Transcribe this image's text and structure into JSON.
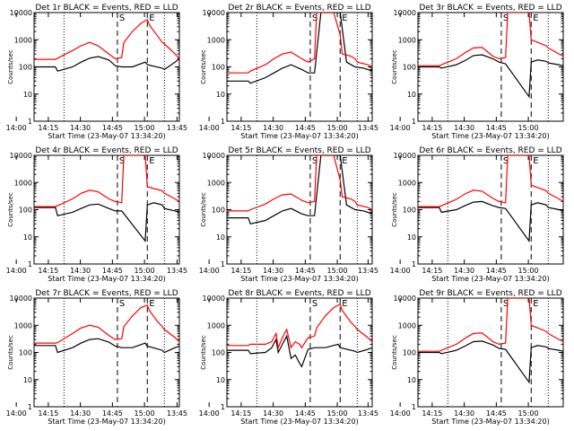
{
  "chart_data": [
    {
      "type": "line",
      "title": "Det 1r BLACK = Events, RED = LLD",
      "ylabel": "Counts/sec",
      "xlabel": "Start Time (23-May-07 13:34:20)",
      "ylim_log": [
        1,
        10000
      ],
      "yticks": [
        "1",
        "10",
        "100",
        "1000",
        "10000"
      ],
      "xticks": [
        "13:45",
        "14:00",
        "14:15",
        "14:30",
        "14:45",
        "15:00"
      ],
      "xlim_min": [
        34,
        102
      ],
      "marker_labels": [
        "S",
        "E"
      ],
      "series": [
        {
          "name": "Events",
          "color": "#000000",
          "x": [
            34,
            44,
            45,
            52,
            56,
            60,
            64,
            69,
            72,
            75,
            80,
            86,
            87,
            94,
            95,
            100,
            102
          ],
          "y": [
            100,
            100,
            70,
            100,
            150,
            210,
            240,
            180,
            110,
            100,
            100,
            150,
            120,
            90,
            80,
            150,
            200
          ]
        },
        {
          "name": "LLD",
          "color": "#ff0000",
          "x": [
            34,
            44,
            45,
            52,
            56,
            60,
            64,
            69,
            72,
            75,
            76,
            80,
            84,
            87,
            88,
            92,
            94,
            95,
            100,
            102
          ],
          "y": [
            190,
            190,
            210,
            400,
            600,
            800,
            600,
            300,
            200,
            220,
            800,
            2000,
            4000,
            5500,
            3500,
            1300,
            800,
            700,
            300,
            200
          ]
        }
      ]
    },
    {
      "type": "line",
      "title": "Det 2r BLACK = Events, RED = LLD",
      "ylabel": "Counts/sec",
      "xlabel": "Start Time (23-May-07 13:34:20)",
      "ylim_log": [
        1,
        10000
      ],
      "yticks": [
        "1",
        "10",
        "100",
        "1000",
        "10000"
      ],
      "xticks": [
        "13:45",
        "14:00",
        "14:15",
        "14:30",
        "14:45",
        "15:00"
      ],
      "xlim_min": [
        34,
        102
      ],
      "marker_labels": [
        "S",
        "E"
      ],
      "series": [
        {
          "name": "Events",
          "color": "#000000",
          "x": [
            34,
            44,
            45,
            52,
            56,
            60,
            64,
            69,
            72,
            75,
            78,
            84,
            87,
            90,
            94,
            98,
            100,
            102
          ],
          "y": [
            30,
            30,
            25,
            40,
            60,
            90,
            120,
            80,
            60,
            60,
            10000,
            10000,
            10000,
            150,
            100,
            90,
            80,
            70
          ]
        },
        {
          "name": "LLD",
          "color": "#ff0000",
          "x": [
            34,
            44,
            45,
            52,
            56,
            60,
            64,
            69,
            72,
            75,
            76,
            80,
            84,
            87,
            88,
            92,
            94,
            95,
            100,
            102
          ],
          "y": [
            60,
            60,
            70,
            120,
            200,
            300,
            350,
            200,
            150,
            200,
            10000,
            10000,
            10000,
            1500,
            300,
            250,
            200,
            150,
            120,
            100
          ]
        }
      ]
    },
    {
      "type": "line",
      "title": "Det 3r BLACK = Events, RED = LLD",
      "ylabel": "Counts/sec",
      "xlabel": "Start Time (23-May-07 13:34:20)",
      "ylim_log": [
        1,
        10000
      ],
      "yticks": [
        "1",
        "10",
        "100",
        "1000",
        "10000"
      ],
      "xticks": [
        "13:45",
        "14:00",
        "14:15",
        "14:30",
        "14:45",
        "15:00"
      ],
      "xlim_min": [
        34,
        102
      ],
      "marker_labels": [
        "S",
        "E"
      ],
      "series": [
        {
          "name": "Events",
          "color": "#000000",
          "x": [
            34,
            44,
            45,
            52,
            56,
            60,
            64,
            69,
            72,
            75,
            86,
            87,
            90,
            94,
            95,
            100,
            102
          ],
          "y": [
            100,
            100,
            90,
            120,
            170,
            260,
            280,
            200,
            150,
            130,
            8,
            150,
            180,
            160,
            140,
            120,
            110
          ]
        },
        {
          "name": "LLD",
          "color": "#ff0000",
          "x": [
            34,
            44,
            45,
            52,
            56,
            60,
            64,
            69,
            72,
            75,
            76,
            84,
            86,
            87,
            90,
            94,
            95,
            100,
            102
          ],
          "y": [
            110,
            110,
            120,
            200,
            330,
            500,
            520,
            250,
            200,
            220,
            10000,
            10000,
            10000,
            1000,
            800,
            600,
            500,
            300,
            250
          ]
        }
      ]
    },
    {
      "type": "line",
      "title": "Det 4r BLACK = Events, RED = LLD",
      "ylabel": "Counts/sec",
      "xlabel": "Start Time (23-May-07 13:34:20)",
      "ylim_log": [
        1,
        10000
      ],
      "yticks": [
        "1",
        "10",
        "100",
        "1000",
        "10000"
      ],
      "xticks": [
        "13:45",
        "14:00",
        "14:15",
        "14:30",
        "14:45",
        "15:00"
      ],
      "xlim_min": [
        34,
        102
      ],
      "marker_labels": [
        "S",
        "E"
      ],
      "series": [
        {
          "name": "Events",
          "color": "#000000",
          "x": [
            34,
            44,
            45,
            52,
            56,
            60,
            64,
            69,
            72,
            75,
            86,
            87,
            90,
            94,
            95,
            100,
            102
          ],
          "y": [
            120,
            120,
            60,
            80,
            110,
            150,
            160,
            110,
            90,
            90,
            7,
            150,
            180,
            150,
            110,
            90,
            80
          ]
        },
        {
          "name": "LLD",
          "color": "#ff0000",
          "x": [
            34,
            44,
            45,
            52,
            56,
            60,
            64,
            69,
            72,
            75,
            76,
            84,
            86,
            87,
            90,
            94,
            95,
            100,
            102
          ],
          "y": [
            130,
            130,
            140,
            250,
            400,
            520,
            450,
            250,
            200,
            180,
            10000,
            10000,
            10000,
            700,
            600,
            500,
            400,
            250,
            200
          ]
        }
      ]
    },
    {
      "type": "line",
      "title": "Det 5r BLACK = Events, RED = LLD",
      "ylabel": "Counts/sec",
      "xlabel": "Start Time (23-May-07 13:34:20)",
      "ylim_log": [
        1,
        10000
      ],
      "yticks": [
        "1",
        "10",
        "100",
        "1000",
        "10000"
      ],
      "xticks": [
        "13:45",
        "14:00",
        "14:15",
        "14:30",
        "14:45",
        "15:00"
      ],
      "xlim_min": [
        34,
        102
      ],
      "marker_labels": [
        "S",
        "E"
      ],
      "series": [
        {
          "name": "Events",
          "color": "#000000",
          "x": [
            34,
            44,
            45,
            52,
            56,
            60,
            64,
            69,
            72,
            75,
            78,
            84,
            87,
            90,
            94,
            98,
            100,
            102
          ],
          "y": [
            50,
            50,
            30,
            40,
            60,
            90,
            110,
            70,
            60,
            60,
            10000,
            10000,
            10000,
            150,
            100,
            90,
            80,
            70
          ]
        },
        {
          "name": "LLD",
          "color": "#ff0000",
          "x": [
            34,
            44,
            45,
            52,
            56,
            60,
            64,
            69,
            72,
            75,
            76,
            80,
            84,
            87,
            88,
            92,
            94,
            95,
            100,
            102
          ],
          "y": [
            90,
            90,
            100,
            160,
            250,
            350,
            380,
            220,
            180,
            200,
            10000,
            10000,
            10000,
            1200,
            300,
            250,
            200,
            150,
            120,
            100
          ]
        }
      ]
    },
    {
      "type": "line",
      "title": "Det 6r BLACK = Events, RED = LLD",
      "ylabel": "Counts/sec",
      "xlabel": "Start Time (23-May-07 13:34:20)",
      "ylim_log": [
        1,
        10000
      ],
      "yticks": [
        "1",
        "10",
        "100",
        "1000",
        "10000"
      ],
      "xticks": [
        "13:45",
        "14:00",
        "14:15",
        "14:30",
        "14:45",
        "15:00"
      ],
      "xlim_min": [
        34,
        102
      ],
      "marker_labels": [
        "S",
        "E"
      ],
      "series": [
        {
          "name": "Events",
          "color": "#000000",
          "x": [
            34,
            44,
            45,
            52,
            56,
            60,
            64,
            69,
            72,
            75,
            86,
            87,
            90,
            94,
            95,
            100,
            102
          ],
          "y": [
            120,
            120,
            80,
            100,
            140,
            190,
            200,
            140,
            120,
            110,
            7,
            150,
            180,
            150,
            120,
            100,
            90
          ]
        },
        {
          "name": "LLD",
          "color": "#ff0000",
          "x": [
            34,
            44,
            45,
            52,
            56,
            60,
            64,
            69,
            72,
            75,
            76,
            84,
            86,
            87,
            90,
            94,
            95,
            100,
            102
          ],
          "y": [
            130,
            130,
            140,
            240,
            380,
            520,
            480,
            260,
            200,
            180,
            10000,
            10000,
            10000,
            800,
            650,
            500,
            400,
            250,
            200
          ]
        }
      ]
    },
    {
      "type": "line",
      "title": "Det 7r BLACK = Events, RED = LLD",
      "ylabel": "Counts/sec",
      "xlabel": "Start Time (23-May-07 13:34:20)",
      "ylim_log": [
        1,
        10000
      ],
      "yticks": [
        "1",
        "10",
        "100",
        "1000",
        "10000"
      ],
      "xticks": [
        "13:45",
        "14:00",
        "14:15",
        "14:30",
        "14:45",
        "15:00"
      ],
      "xlim_min": [
        34,
        102
      ],
      "marker_labels": [
        "S",
        "E"
      ],
      "series": [
        {
          "name": "Events",
          "color": "#000000",
          "x": [
            34,
            44,
            45,
            52,
            56,
            60,
            64,
            69,
            72,
            75,
            80,
            86,
            87,
            94,
            95,
            100,
            102
          ],
          "y": [
            180,
            180,
            100,
            150,
            220,
            300,
            320,
            240,
            170,
            150,
            150,
            220,
            170,
            120,
            100,
            150,
            170
          ]
        },
        {
          "name": "LLD",
          "color": "#ff0000",
          "x": [
            34,
            44,
            45,
            52,
            56,
            60,
            64,
            69,
            72,
            75,
            76,
            80,
            84,
            87,
            88,
            92,
            94,
            95,
            100,
            102
          ],
          "y": [
            220,
            220,
            230,
            500,
            800,
            1000,
            850,
            420,
            300,
            320,
            900,
            2200,
            4500,
            5500,
            3500,
            1300,
            900,
            700,
            350,
            250
          ]
        }
      ]
    },
    {
      "type": "line",
      "title": "Det 8r BLACK = Events, RED = LLD",
      "ylabel": "Counts/sec",
      "xlabel": "Start Time (23-May-07 13:34:20)",
      "ylim_log": [
        1,
        10000
      ],
      "yticks": [
        "1",
        "10",
        "100",
        "1000",
        "10000"
      ],
      "xticks": [
        "13:45",
        "14:00",
        "14:15",
        "14:30",
        "14:45",
        "15:00"
      ],
      "xlim_min": [
        34,
        102
      ],
      "marker_labels": [
        "S",
        "E"
      ],
      "series": [
        {
          "name": "Events",
          "color": "#000000",
          "x": [
            34,
            44,
            45,
            52,
            55,
            57,
            58,
            60,
            62,
            64,
            66,
            68,
            69,
            72,
            75,
            80,
            86,
            87,
            94,
            95,
            100,
            102
          ],
          "y": [
            120,
            120,
            90,
            100,
            150,
            300,
            100,
            200,
            400,
            60,
            80,
            40,
            30,
            130,
            150,
            150,
            200,
            150,
            110,
            100,
            130,
            150
          ]
        },
        {
          "name": "LLD",
          "color": "#ff0000",
          "x": [
            34,
            44,
            45,
            52,
            55,
            57,
            58,
            60,
            62,
            64,
            66,
            68,
            69,
            72,
            75,
            76,
            80,
            84,
            87,
            88,
            92,
            94,
            95,
            100,
            102
          ],
          "y": [
            180,
            180,
            200,
            200,
            250,
            500,
            150,
            350,
            700,
            150,
            250,
            200,
            150,
            350,
            400,
            800,
            2200,
            4500,
            6000,
            3500,
            1300,
            900,
            700,
            350,
            250
          ]
        }
      ]
    },
    {
      "type": "line",
      "title": "Det 9r BLACK = Events, RED = LLD",
      "ylabel": "Counts/sec",
      "xlabel": "Start Time (23-May-07 13:34:20)",
      "ylim_log": [
        1,
        10000
      ],
      "yticks": [
        "1",
        "10",
        "100",
        "1000",
        "10000"
      ],
      "xticks": [
        "13:45",
        "14:00",
        "14:15",
        "14:30",
        "14:45",
        "15:00"
      ],
      "xlim_min": [
        34,
        102
      ],
      "marker_labels": [
        "S",
        "E"
      ],
      "series": [
        {
          "name": "Events",
          "color": "#000000",
          "x": [
            34,
            44,
            45,
            52,
            56,
            60,
            64,
            69,
            72,
            75,
            86,
            87,
            90,
            94,
            95,
            100,
            102
          ],
          "y": [
            100,
            100,
            90,
            120,
            170,
            250,
            260,
            190,
            140,
            130,
            8,
            150,
            180,
            160,
            140,
            120,
            110
          ]
        },
        {
          "name": "LLD",
          "color": "#ff0000",
          "x": [
            34,
            44,
            45,
            52,
            56,
            60,
            64,
            69,
            72,
            75,
            76,
            84,
            86,
            87,
            90,
            94,
            95,
            100,
            102
          ],
          "y": [
            110,
            110,
            120,
            200,
            330,
            500,
            520,
            250,
            200,
            220,
            10000,
            10000,
            10000,
            1000,
            800,
            600,
            500,
            300,
            250
          ]
        }
      ]
    }
  ]
}
